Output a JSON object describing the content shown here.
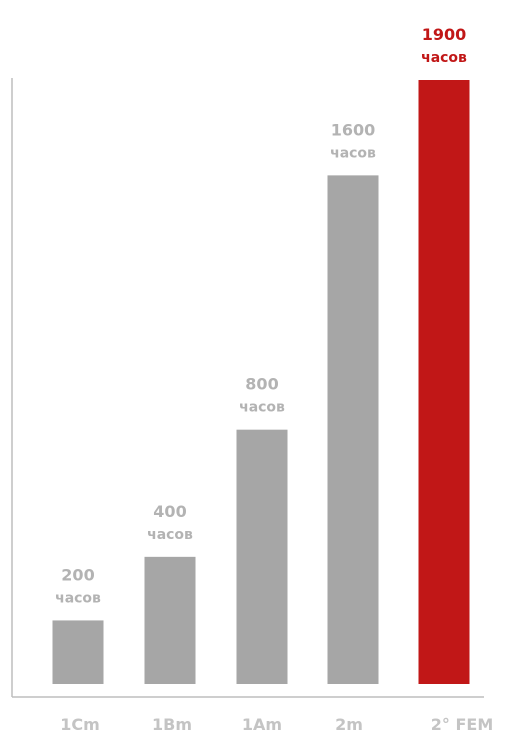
{
  "chart_data": {
    "type": "bar",
    "categories": [
      "1Cm",
      "1Bm",
      "1Am",
      "2m",
      "2° FEM"
    ],
    "values": [
      200,
      400,
      800,
      1600,
      1900
    ],
    "value_labels": [
      "200",
      "400",
      "800",
      "1600",
      "1900"
    ],
    "unit_label": "часов",
    "highlight_index": 4,
    "ylim": [
      0,
      2000
    ],
    "grid": false,
    "title": "",
    "xlabel": "",
    "ylabel": ""
  },
  "colors": {
    "bar": "#a6a6a6",
    "highlight": "#c11717",
    "label": "#b3b3b3",
    "axis": "#bdbdbd",
    "tick": "#c4c4c4"
  }
}
